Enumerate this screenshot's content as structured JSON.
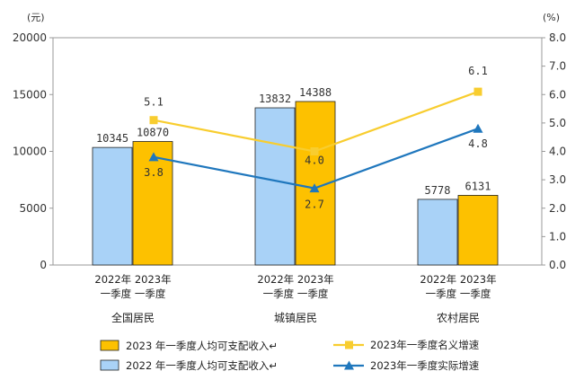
{
  "chart_data": {
    "type": "bar",
    "y_left_unit": "(元)",
    "y_right_unit": "(%)",
    "ylim_left": [
      0,
      20000
    ],
    "ylim_right": [
      0,
      8
    ],
    "y_left_ticks": [
      "0",
      "5000",
      "10000",
      "15000",
      "20000"
    ],
    "y_right_ticks": [
      "0.0",
      "1.0",
      "2.0",
      "3.0",
      "4.0",
      "5.0",
      "6.0",
      "7.0",
      "8.0"
    ],
    "categories": [
      "全国居民",
      "城镇居民",
      "农村居民"
    ],
    "bar_year_labels": [
      "2022年",
      "2023年"
    ],
    "bar_quarter_labels": [
      "一季度",
      "一季度"
    ],
    "bar_series": [
      {
        "name": "2022 年一季度人均可支配收入↵",
        "color": "#a9d2f7",
        "values": [
          10345,
          13832,
          5778
        ],
        "labels": [
          "10345",
          "13832",
          "5778"
        ]
      },
      {
        "name": "2023 年一季度人均可支配收入↵",
        "color": "#fdc100",
        "values": [
          10870,
          14388,
          6131
        ],
        "labels": [
          "10870",
          "14388",
          "6131"
        ]
      }
    ],
    "line_series": [
      {
        "name": "2023年一季度名义增速",
        "color": "#f8cd2f",
        "marker": "square",
        "values": [
          5.1,
          4.0,
          6.1
        ],
        "labels": [
          "5.1",
          "4.0",
          "6.1"
        ]
      },
      {
        "name": "2023年一季度实际增速",
        "color": "#1f77bd",
        "marker": "triangle",
        "values": [
          3.8,
          2.7,
          4.8
        ],
        "labels": [
          "3.8",
          "2.7",
          "4.8"
        ]
      }
    ],
    "grid": false
  }
}
